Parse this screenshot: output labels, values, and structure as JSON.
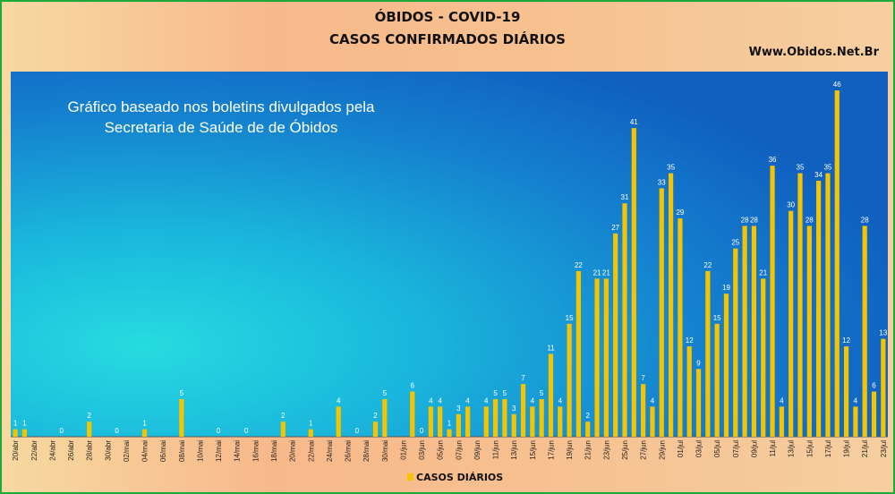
{
  "chart_data": {
    "type": "bar",
    "title": "ÓBIDOS - COVID-19",
    "subtitle": "CASOS CONFIRMADOS DIÁRIOS",
    "source": "Www.Obidos.Net.Br",
    "annotation": [
      "Gráfico baseado nos boletins divulgados pela",
      "Secretaria de Saúde de de Óbidos"
    ],
    "categories": [
      "20/abr",
      null,
      "22/abr",
      null,
      "24/abr",
      null,
      "26/abr",
      null,
      "28/abr",
      null,
      "30/abr",
      null,
      "02/mai",
      null,
      "04/mai",
      null,
      "06/mai",
      null,
      "08/mai",
      null,
      "10/mai",
      null,
      "12/mai",
      null,
      "14/mai",
      null,
      "16/mai",
      null,
      "18/mai",
      null,
      "20/mai",
      null,
      "22/mai",
      null,
      "24/mai",
      null,
      "26/mai",
      null,
      "28/mai",
      null,
      "30/mai",
      null,
      "01/jun",
      null,
      "03/jun",
      null,
      "05/jun",
      null,
      "07/jun",
      null,
      "09/jun",
      null,
      "11/jun",
      null,
      "13/jun",
      null,
      "15/jun",
      null,
      "17/jun",
      null,
      "19/jun",
      null,
      "21/jun",
      null,
      "23/jun",
      null,
      "25/jun",
      null,
      "27/jun",
      null,
      "29/jun",
      null,
      "01/jul",
      null,
      "03/jul",
      null,
      "05/jul",
      null,
      "07/jul",
      null,
      "09/jul",
      null,
      "11/jul",
      null,
      "13/jul",
      null,
      "15/jul",
      null,
      "17/jul",
      null,
      "19/jul",
      null,
      "21/jul",
      null,
      "23/jul"
    ],
    "series": [
      {
        "name": "CASOS DIÁRIOS",
        "color": "#f5c400",
        "values": [
          1,
          1,
          null,
          null,
          null,
          0,
          null,
          null,
          2,
          null,
          null,
          0,
          null,
          null,
          1,
          null,
          null,
          null,
          5,
          null,
          null,
          null,
          0,
          null,
          null,
          0,
          null,
          null,
          null,
          2,
          null,
          null,
          1,
          null,
          null,
          4,
          null,
          0,
          null,
          2,
          5,
          null,
          null,
          6,
          0,
          4,
          4,
          1,
          3,
          4,
          null,
          4,
          5,
          5,
          3,
          7,
          4,
          5,
          11,
          4,
          15,
          22,
          2,
          21,
          21,
          27,
          31,
          41,
          7,
          4,
          33,
          35,
          29,
          12,
          9,
          22,
          15,
          19,
          25,
          28,
          28,
          21,
          36,
          4,
          30,
          35,
          28,
          34,
          35,
          46,
          12,
          4,
          28,
          6,
          13
        ]
      }
    ],
    "ylim": [
      0,
      48.5
    ],
    "legend": "bottom"
  }
}
